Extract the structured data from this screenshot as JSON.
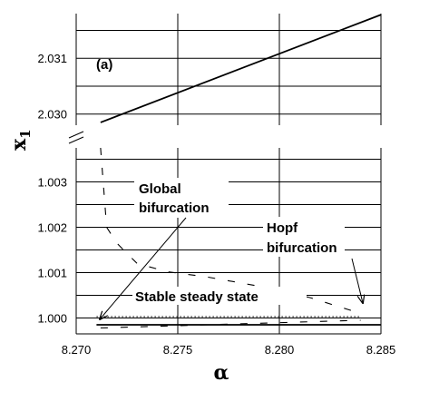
{
  "chart_data": {
    "type": "line",
    "panel_label": "(a)",
    "xlabel": "α",
    "ylabel": "x",
    "ylabel_subscript": "1",
    "xlim": [
      8.27,
      8.285
    ],
    "x_ticks": [
      "8.270",
      "8.275",
      "8.280",
      "8.285"
    ],
    "upper_panel": {
      "ylim": [
        2.0298,
        2.0318
      ],
      "y_ticks": [
        "2.030",
        "2.031"
      ],
      "series": [
        {
          "style": "solid",
          "x": [
            8.2712,
            8.285
          ],
          "y": [
            2.02985,
            2.03178
          ]
        }
      ]
    },
    "lower_panel": {
      "ylim": [
        0.99965,
        1.00375
      ],
      "y_ticks": [
        "1.000",
        "1.001",
        "1.002",
        "1.003"
      ],
      "series": [
        {
          "style": "solid",
          "x": [
            8.271,
            8.285
          ],
          "y": [
            0.99985,
            0.99985
          ]
        },
        {
          "style": "dotted",
          "x": [
            8.271,
            8.284
          ],
          "y": [
            1.00003,
            1.00003
          ]
        },
        {
          "style": "dashed",
          "x": [
            8.2712,
            8.2715,
            8.272,
            8.273,
            8.2745,
            8.2765,
            8.279,
            8.2815,
            8.284
          ],
          "y": [
            1.00375,
            1.002,
            1.00165,
            1.0012,
            1.00102,
            1.0009,
            1.0007,
            1.00045,
            1.0001
          ]
        },
        {
          "style": "dashed",
          "x": [
            8.2712,
            8.284
          ],
          "y": [
            0.99978,
            0.99995
          ]
        }
      ]
    },
    "annotations": [
      {
        "text": "Global",
        "target": [
          8.2712,
          0.99975
        ]
      },
      {
        "text": "bifurcation"
      },
      {
        "text": "Hopf",
        "target": [
          8.284,
          1.00008
        ]
      },
      {
        "text": "bifurcation"
      },
      {
        "text": "Stable steady state"
      }
    ]
  }
}
